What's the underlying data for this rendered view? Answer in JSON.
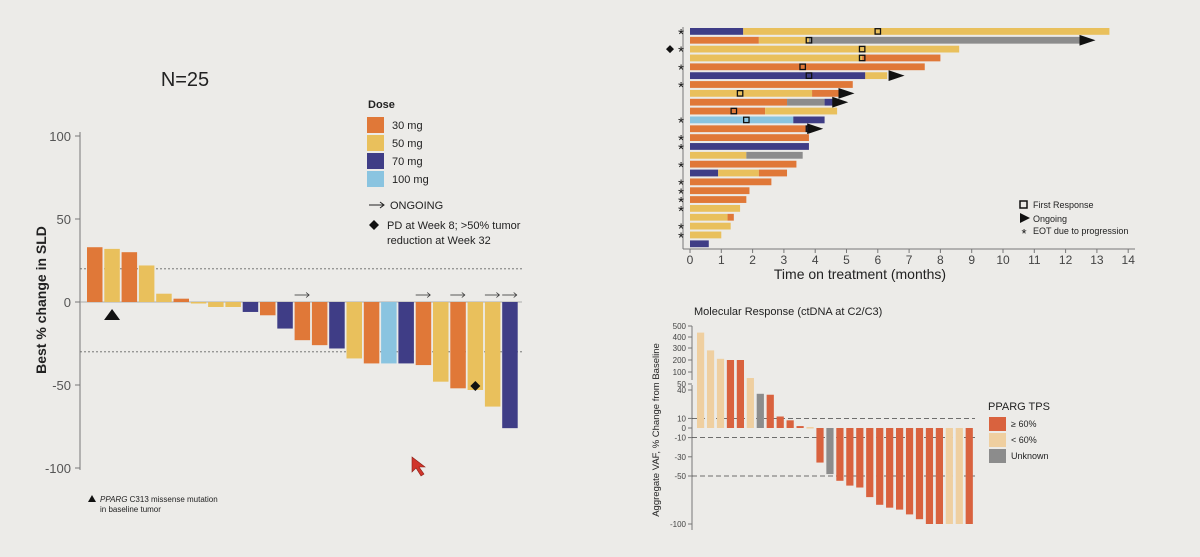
{
  "colors": {
    "dose_30": "#e07838",
    "dose_50": "#e9c05c",
    "dose_70": "#3f3d86",
    "dose_100": "#8ac4e0",
    "vaf_high": "#d9623e",
    "vaf_low": "#efcfa0",
    "vaf_unknown": "#8c8c8c",
    "axis": "#555555",
    "text": "#222222"
  },
  "chart_data": [
    {
      "id": "waterfall",
      "type": "bar",
      "title": "N=25",
      "ylabel": "Best % change in SLD",
      "ylim": [
        -100,
        100
      ],
      "yticks": [
        "100",
        "50",
        "0",
        "-50",
        "-100"
      ],
      "reference_lines": [
        20,
        -30
      ],
      "legend_title": "Dose",
      "legend": [
        {
          "label": "30 mg",
          "key": "dose_30"
        },
        {
          "label": "50 mg",
          "key": "dose_50"
        },
        {
          "label": "70 mg",
          "key": "dose_70"
        },
        {
          "label": "100 mg",
          "key": "dose_100"
        }
      ],
      "ongoing_label": "ONGOING",
      "pd_note_line1": "PD at Week 8; >50% tumor",
      "pd_note_line2": "reduction at Week 32",
      "footnote_gene": "PPARG",
      "footnote_line1": " C313 missense mutation",
      "footnote_line2": "in baseline tumor",
      "bars": [
        {
          "value": 33,
          "dose": "dose_30"
        },
        {
          "value": 32,
          "dose": "dose_50"
        },
        {
          "value": 30,
          "dose": "dose_30"
        },
        {
          "value": 22,
          "dose": "dose_50"
        },
        {
          "value": 5,
          "dose": "dose_50"
        },
        {
          "value": 2,
          "dose": "dose_30"
        },
        {
          "value": 0,
          "dose": "dose_50"
        },
        {
          "value": -3,
          "dose": "dose_50"
        },
        {
          "value": -3,
          "dose": "dose_50"
        },
        {
          "value": -6,
          "dose": "dose_70"
        },
        {
          "value": -8,
          "dose": "dose_30"
        },
        {
          "value": -16,
          "dose": "dose_70"
        },
        {
          "value": -23,
          "dose": "dose_30",
          "ongoing": true
        },
        {
          "value": -26,
          "dose": "dose_30"
        },
        {
          "value": -28,
          "dose": "dose_70"
        },
        {
          "value": -34,
          "dose": "dose_50"
        },
        {
          "value": -37,
          "dose": "dose_30"
        },
        {
          "value": -37,
          "dose": "dose_100"
        },
        {
          "value": -37,
          "dose": "dose_70"
        },
        {
          "value": -38,
          "dose": "dose_30",
          "ongoing": true
        },
        {
          "value": -48,
          "dose": "dose_50"
        },
        {
          "value": -52,
          "dose": "dose_30",
          "ongoing": true
        },
        {
          "value": -53,
          "dose": "dose_50",
          "pd_marker": true
        },
        {
          "value": -63,
          "dose": "dose_50",
          "ongoing": true
        },
        {
          "value": -76,
          "dose": "dose_70",
          "ongoing": true
        }
      ],
      "triangle_bar_index": 1
    },
    {
      "id": "swimmer",
      "type": "bar",
      "xlabel": "Time on treatment (months)",
      "xlim": [
        0,
        14
      ],
      "xticks": [
        "0",
        "1",
        "2",
        "3",
        "4",
        "5",
        "6",
        "7",
        "8",
        "9",
        "10",
        "11",
        "12",
        "13",
        "14"
      ],
      "legend": [
        {
          "label": "First Response",
          "symbol": "square"
        },
        {
          "label": "Ongoing",
          "symbol": "arrow"
        },
        {
          "label": "EOT due to progression",
          "symbol": "star"
        }
      ],
      "rows": [
        {
          "segments": [
            [
              "dose_70",
              1.7
            ],
            [
              "dose_50",
              13.4
            ]
          ],
          "response": 6.0,
          "eot": true
        },
        {
          "segments": [
            [
              "dose_30",
              2.2
            ],
            [
              "dose_50",
              3.8
            ],
            [
              "vaf_unknown",
              12.5
            ]
          ],
          "response": 3.8,
          "ongoing": 12.7
        },
        {
          "segments": [
            [
              "dose_50",
              8.6
            ]
          ],
          "response": 5.5,
          "eot": true,
          "pd_marker": true
        },
        {
          "segments": [
            [
              "dose_50",
              5.5
            ],
            [
              "dose_30",
              8.0
            ]
          ],
          "response": 5.5
        },
        {
          "segments": [
            [
              "dose_30",
              7.5
            ]
          ],
          "response": 3.6,
          "eot": true
        },
        {
          "segments": [
            [
              "dose_70",
              5.6
            ],
            [
              "dose_50",
              6.3
            ]
          ],
          "response": 3.8,
          "ongoing": 6.6
        },
        {
          "segments": [
            [
              "dose_30",
              5.2
            ]
          ],
          "eot": true
        },
        {
          "segments": [
            [
              "dose_50",
              3.9
            ],
            [
              "dose_30",
              4.9
            ]
          ],
          "response": 1.6,
          "ongoing": 5.0
        },
        {
          "segments": [
            [
              "dose_30",
              3.1
            ],
            [
              "vaf_unknown",
              4.3
            ],
            [
              "dose_70",
              4.6
            ]
          ],
          "ongoing": 4.8
        },
        {
          "segments": [
            [
              "dose_30",
              2.4
            ],
            [
              "dose_50",
              4.7
            ]
          ],
          "response": 1.4
        },
        {
          "segments": [
            [
              "dose_100",
              3.3
            ],
            [
              "dose_70",
              4.3
            ]
          ],
          "response": 1.8,
          "eot": true
        },
        {
          "segments": [
            [
              "dose_30",
              3.7
            ],
            [
              "dose_70",
              3.8
            ]
          ],
          "response": 3.8,
          "ongoing": 4.0
        },
        {
          "segments": [
            [
              "dose_30",
              3.8
            ]
          ],
          "eot": true
        },
        {
          "segments": [
            [
              "dose_70",
              3.8
            ]
          ],
          "eot": true
        },
        {
          "segments": [
            [
              "dose_50",
              1.8
            ],
            [
              "vaf_unknown",
              3.6
            ]
          ]
        },
        {
          "segments": [
            [
              "dose_30",
              3.4
            ]
          ],
          "eot": true
        },
        {
          "segments": [
            [
              "dose_70",
              0.9
            ],
            [
              "dose_50",
              2.2
            ],
            [
              "dose_30",
              3.1
            ]
          ]
        },
        {
          "segments": [
            [
              "dose_30",
              2.6
            ]
          ],
          "eot": true
        },
        {
          "segments": [
            [
              "dose_30",
              1.9
            ]
          ],
          "eot": true
        },
        {
          "segments": [
            [
              "dose_30",
              1.8
            ]
          ],
          "eot": true
        },
        {
          "segments": [
            [
              "dose_50",
              1.6
            ]
          ],
          "eot": true
        },
        {
          "segments": [
            [
              "dose_50",
              1.2
            ],
            [
              "dose_30",
              1.4
            ]
          ]
        },
        {
          "segments": [
            [
              "dose_50",
              1.3
            ]
          ],
          "eot": true
        },
        {
          "segments": [
            [
              "dose_50",
              1.0
            ]
          ],
          "eot": true
        },
        {
          "segments": [
            [
              "dose_70",
              0.6
            ]
          ]
        }
      ]
    },
    {
      "id": "vaf",
      "type": "bar",
      "title": "Molecular Response (ctDNA at C2/C3)",
      "ylabel": "Aggregate VAF, % Change from Baseline",
      "yticks_upper": [
        "500",
        "400",
        "300",
        "200",
        "100",
        "50",
        "40"
      ],
      "yticks_lower": [
        "10",
        "0",
        "-10",
        "-30",
        "-50",
        "-100"
      ],
      "legend_title": "PPARG TPS",
      "legend": [
        {
          "label": "≥ 60%",
          "key": "vaf_high"
        },
        {
          "label": "< 60%",
          "key": "vaf_low"
        },
        {
          "label": "Unknown",
          "key": "vaf_unknown"
        }
      ],
      "bars": [
        {
          "value": 440,
          "color": "vaf_low"
        },
        {
          "value": 280,
          "color": "vaf_low"
        },
        {
          "value": 210,
          "color": "vaf_low"
        },
        {
          "value": 200,
          "color": "vaf_high"
        },
        {
          "value": 200,
          "color": "vaf_high"
        },
        {
          "value": 75,
          "color": "vaf_low"
        },
        {
          "value": 36,
          "color": "vaf_unknown"
        },
        {
          "value": 35,
          "color": "vaf_high"
        },
        {
          "value": 12,
          "color": "vaf_high"
        },
        {
          "value": 8,
          "color": "vaf_high"
        },
        {
          "value": 2,
          "color": "vaf_high"
        },
        {
          "value": 1,
          "color": "vaf_low"
        },
        {
          "value": -36,
          "color": "vaf_high"
        },
        {
          "value": -48,
          "color": "vaf_unknown"
        },
        {
          "value": -55,
          "color": "vaf_high"
        },
        {
          "value": -60,
          "color": "vaf_high"
        },
        {
          "value": -62,
          "color": "vaf_high"
        },
        {
          "value": -72,
          "color": "vaf_high"
        },
        {
          "value": -80,
          "color": "vaf_high"
        },
        {
          "value": -83,
          "color": "vaf_high"
        },
        {
          "value": -85,
          "color": "vaf_high"
        },
        {
          "value": -90,
          "color": "vaf_high"
        },
        {
          "value": -95,
          "color": "vaf_high"
        },
        {
          "value": -100,
          "color": "vaf_high"
        },
        {
          "value": -100,
          "color": "vaf_high"
        },
        {
          "value": -100,
          "color": "vaf_low"
        },
        {
          "value": -100,
          "color": "vaf_low"
        },
        {
          "value": -100,
          "color": "vaf_high"
        }
      ]
    }
  ]
}
